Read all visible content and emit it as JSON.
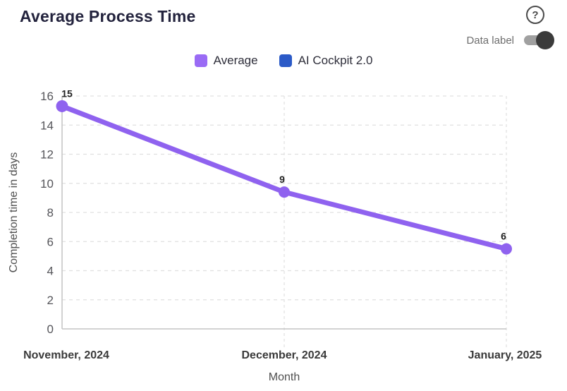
{
  "header": {
    "title": "Average Process Time",
    "help_glyph": "?"
  },
  "controls": {
    "data_label": {
      "label": "Data label",
      "state": "on"
    }
  },
  "legend": {
    "items": [
      {
        "label": "Average",
        "color": "#9a6bf5"
      },
      {
        "label": "AI Cockpit 2.0",
        "color": "#2b5ac7"
      }
    ]
  },
  "chart_data": {
    "type": "line",
    "title": "Average Process Time",
    "categories": [
      "November, 2024",
      "December, 2024",
      "January, 2025"
    ],
    "series": [
      {
        "name": "Average",
        "color": "#8f62ef",
        "values": [
          15.3,
          9.4,
          5.5
        ],
        "data_labels": [
          "15",
          "9",
          "6"
        ]
      },
      {
        "name": "AI Cockpit 2.0",
        "color": "#2b5ac7",
        "values": [],
        "data_labels": []
      }
    ],
    "xlabel": "Month",
    "ylabel": "Completion time in days",
    "ylim": [
      0,
      16
    ],
    "yticks": [
      0,
      2,
      4,
      6,
      8,
      10,
      12,
      14,
      16
    ],
    "grid": {
      "horizontal": "dashed",
      "vertical": "dashed-at-category-ticks"
    },
    "legend_position": "top-center",
    "data_labels_shown": true,
    "colors": {
      "grid_line": "#e0e0e0",
      "axis_line": "#c4c4c4",
      "tick_text": "#55555a",
      "category_text": "#3a3a3a",
      "axis_title_text": "#4f4f4f",
      "data_label_text": "#222222"
    }
  }
}
